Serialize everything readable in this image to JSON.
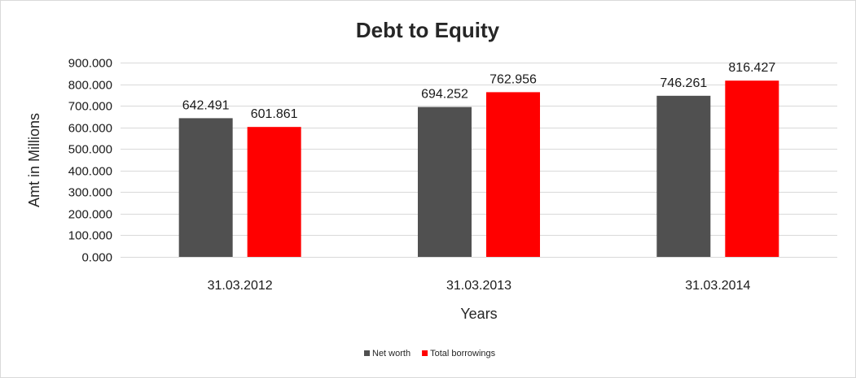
{
  "chart_data": {
    "type": "bar",
    "title": "Debt to Equity",
    "xlabel": "Years",
    "ylabel": "Amt in Millions",
    "categories": [
      "31.03.2012",
      "31.03.2013",
      "31.03.2014"
    ],
    "series": [
      {
        "name": "Net worth",
        "values": [
          642.491,
          694.252,
          746.261
        ],
        "color": "#505050"
      },
      {
        "name": "Total borrowings",
        "values": [
          601.861,
          762.956,
          816.427
        ],
        "color": "#ff0000"
      }
    ],
    "ylim": [
      0,
      900
    ],
    "yticks": [
      0,
      100,
      200,
      300,
      400,
      500,
      600,
      700,
      800,
      900
    ],
    "ytick_labels": [
      "0.000",
      "100.000",
      "200.000",
      "300.000",
      "400.000",
      "500.000",
      "600.000",
      "700.000",
      "800.000",
      "900.000"
    ],
    "data_labels": [
      [
        "642.491",
        "694.252",
        "746.261"
      ],
      [
        "601.861",
        "762.956",
        "816.427"
      ]
    ],
    "grid": true,
    "legend_position": "bottom"
  }
}
